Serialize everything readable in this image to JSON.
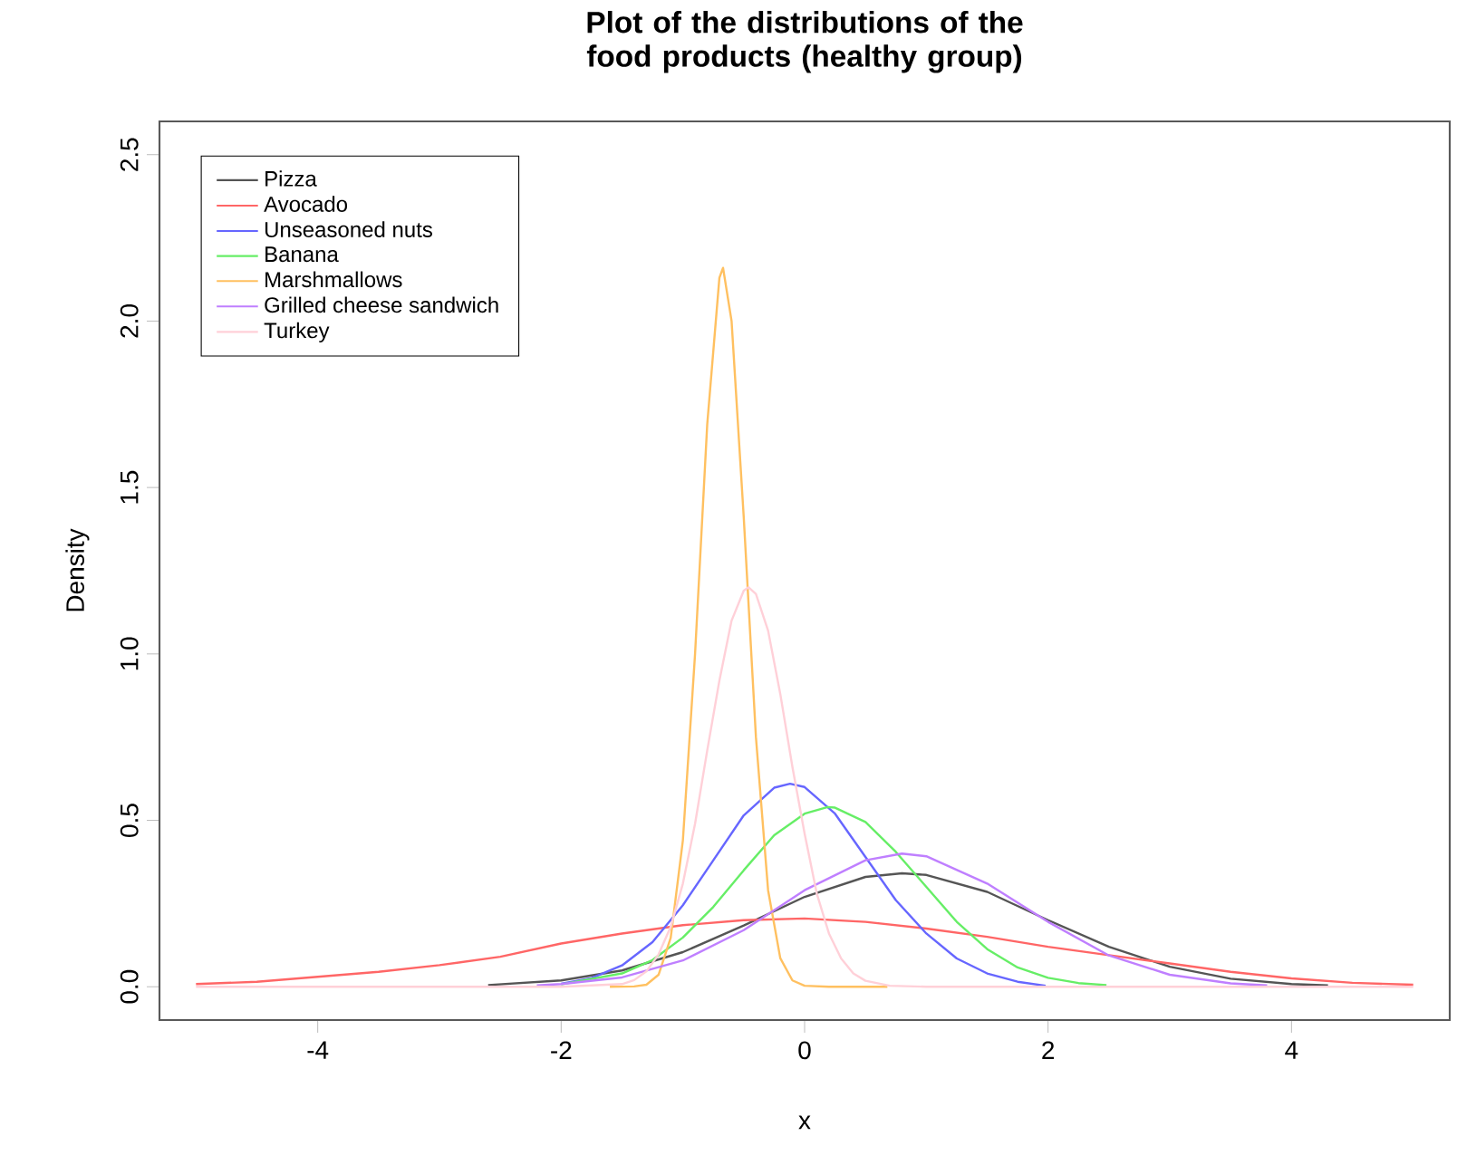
{
  "chart_data": {
    "type": "line",
    "title": "Plot of the distributions of the food products (healthy group)",
    "xlabel": "x",
    "ylabel": "Density",
    "xlim": [
      -5.3,
      5.3
    ],
    "ylim": [
      -0.1,
      2.6
    ],
    "xticks": [
      -4,
      -2,
      0,
      2,
      4
    ],
    "yticks": [
      {
        "value": 0,
        "label": "0.0"
      },
      {
        "value": 0.5,
        "label": "0.5"
      },
      {
        "value": 1,
        "label": "1.0"
      },
      {
        "value": 1.5,
        "label": "1.5"
      },
      {
        "value": 2,
        "label": "2.0"
      },
      {
        "value": 2.5,
        "label": "2.5"
      }
    ],
    "grid": false,
    "legend": "top left",
    "marker": "none",
    "line_style": "solid",
    "series": [
      {
        "name": "Pizza",
        "color": "#555555",
        "x": [
          -2.6,
          -2,
          -1.5,
          -1,
          -0.5,
          0,
          0.5,
          0.8,
          1,
          1.5,
          2,
          2.5,
          3,
          3.5,
          4,
          4.3
        ],
        "values": [
          0.005,
          0.019,
          0.049,
          0.104,
          0.184,
          0.27,
          0.33,
          0.341,
          0.336,
          0.285,
          0.2,
          0.12,
          0.06,
          0.024,
          0.008,
          0.004
        ]
      },
      {
        "name": "Avocado",
        "color": "#ff6666",
        "x": [
          -5,
          -4.5,
          -4,
          -3.5,
          -3,
          -2.5,
          -2,
          -1.5,
          -1,
          -0.5,
          0,
          0.5,
          1,
          1.5,
          2,
          2.5,
          3,
          3.5,
          4,
          4.5,
          5
        ],
        "values": [
          0.008,
          0.015,
          0.03,
          0.045,
          0.065,
          0.09,
          0.13,
          0.16,
          0.185,
          0.2,
          0.205,
          0.195,
          0.175,
          0.15,
          0.12,
          0.095,
          0.07,
          0.045,
          0.025,
          0.012,
          0.006
        ]
      },
      {
        "name": "Unseasoned nuts",
        "color": "#6666ff",
        "x": [
          -2,
          -1.75,
          -1.5,
          -1.25,
          -1,
          -0.75,
          -0.5,
          -0.25,
          -0.12,
          0,
          0.25,
          0.5,
          0.75,
          1,
          1.25,
          1.5,
          1.75,
          1.98
        ],
        "values": [
          0.009,
          0.026,
          0.064,
          0.134,
          0.245,
          0.38,
          0.515,
          0.598,
          0.61,
          0.6,
          0.52,
          0.39,
          0.26,
          0.16,
          0.085,
          0.04,
          0.015,
          0.003
        ]
      },
      {
        "name": "Banana",
        "color": "#66ee66",
        "x": [
          -2,
          -1.5,
          -1.25,
          -1,
          -0.75,
          -0.5,
          -0.25,
          0,
          0.19,
          0.25,
          0.5,
          0.75,
          1,
          1.25,
          1.5,
          1.75,
          2,
          2.25,
          2.48
        ],
        "values": [
          0.007,
          0.04,
          0.08,
          0.148,
          0.24,
          0.35,
          0.455,
          0.52,
          0.54,
          0.538,
          0.495,
          0.405,
          0.3,
          0.195,
          0.113,
          0.058,
          0.027,
          0.011,
          0.005
        ]
      },
      {
        "name": "Marshmallows",
        "color": "#ffc060",
        "x": [
          -1.6,
          -1.4,
          -1.3,
          -1.2,
          -1.1,
          -1,
          -0.9,
          -0.8,
          -0.7,
          -0.67,
          -0.6,
          -0.5,
          -0.4,
          -0.3,
          -0.2,
          -0.1,
          0,
          0.2,
          0.68
        ],
        "values": [
          0,
          0.001,
          0.006,
          0.036,
          0.147,
          0.44,
          1,
          1.69,
          2.13,
          2.16,
          2,
          1.41,
          0.75,
          0.29,
          0.086,
          0.019,
          0.003,
          0,
          0
        ]
      },
      {
        "name": "Grilled cheese sandwich",
        "color": "#bf7fff",
        "x": [
          -2.2,
          -2,
          -1.5,
          -1,
          -0.5,
          0,
          0.5,
          0.8,
          1,
          1.5,
          2,
          2.5,
          3,
          3.5,
          3.8
        ],
        "values": [
          0.004,
          0.008,
          0.028,
          0.079,
          0.17,
          0.29,
          0.38,
          0.4,
          0.392,
          0.31,
          0.195,
          0.094,
          0.036,
          0.01,
          0.004
        ]
      },
      {
        "name": "Turkey",
        "color": "#ffd0d8",
        "x": [
          -5,
          -2,
          -1.5,
          -1.4,
          -1.3,
          -1.2,
          -1.1,
          -1,
          -0.9,
          -0.8,
          -0.7,
          -0.6,
          -0.5,
          -0.46,
          -0.4,
          -0.3,
          -0.2,
          -0.1,
          0,
          0.1,
          0.2,
          0.3,
          0.4,
          0.5,
          0.7,
          1,
          5
        ],
        "values": [
          0,
          0,
          0.008,
          0.02,
          0.046,
          0.097,
          0.18,
          0.31,
          0.49,
          0.71,
          0.92,
          1.1,
          1.19,
          1.2,
          1.18,
          1.07,
          0.88,
          0.66,
          0.46,
          0.28,
          0.16,
          0.085,
          0.04,
          0.018,
          0.003,
          0,
          0
        ]
      }
    ]
  }
}
